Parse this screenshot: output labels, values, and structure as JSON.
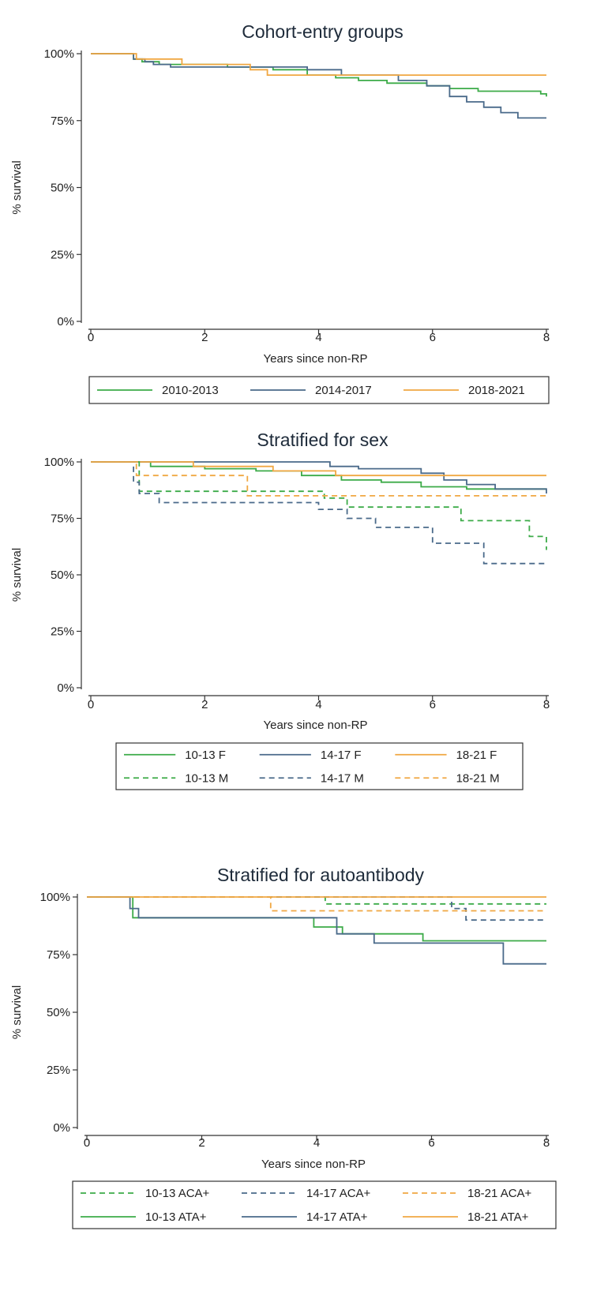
{
  "chart_data": [
    {
      "type": "line",
      "title": "Cohort-entry groups",
      "xlabel": "Years since non-RP",
      "ylabel": "% survival",
      "xlim": [
        0,
        8
      ],
      "ylim": [
        0,
        100
      ],
      "xticks": [
        0,
        2,
        4,
        6,
        8
      ],
      "yticks": [
        0,
        25,
        50,
        75,
        100
      ],
      "ytick_labels": [
        "0%",
        "25%",
        "50%",
        "75%",
        "100%"
      ],
      "grid": false,
      "legend": {
        "position": "bottom",
        "columns": 3
      },
      "series": [
        {
          "name": "2010-2013",
          "color": "#3cab48",
          "dashed": false,
          "x": [
            0,
            0.75,
            0.9,
            1.2,
            2.4,
            3.2,
            3.8,
            4.3,
            4.7,
            5.2,
            5.9,
            6.3,
            6.8,
            7.9,
            8.0
          ],
          "y": [
            100,
            98,
            97,
            96,
            95,
            94,
            92,
            91,
            90,
            89,
            88,
            87,
            86,
            85,
            84
          ]
        },
        {
          "name": "2014-2017",
          "color": "#4a6a8a",
          "dashed": false,
          "x": [
            0,
            0.75,
            0.95,
            1.1,
            1.4,
            3.8,
            4.4,
            5.4,
            5.9,
            6.3,
            6.6,
            6.9,
            7.2,
            7.5,
            8.0
          ],
          "y": [
            100,
            98,
            97,
            96,
            95,
            94,
            92,
            90,
            88,
            84,
            82,
            80,
            78,
            76,
            76
          ]
        },
        {
          "name": "2018-2021",
          "color": "#f0a742",
          "dashed": false,
          "x": [
            0,
            0.8,
            1.6,
            2.8,
            3.1,
            4.7,
            8.0
          ],
          "y": [
            100,
            98,
            96,
            94,
            92,
            92,
            92
          ]
        }
      ]
    },
    {
      "type": "line",
      "title": "Stratified for sex",
      "xlabel": "Years since non-RP",
      "ylabel": "% survival",
      "xlim": [
        0,
        8
      ],
      "ylim": [
        0,
        100
      ],
      "xticks": [
        0,
        2,
        4,
        6,
        8
      ],
      "yticks": [
        0,
        25,
        50,
        75,
        100
      ],
      "ytick_labels": [
        "0%",
        "25%",
        "50%",
        "75%",
        "100%"
      ],
      "grid": false,
      "legend": {
        "position": "bottom",
        "columns": 3
      },
      "series": [
        {
          "name": "10-13 F",
          "color": "#3cab48",
          "dashed": false,
          "x": [
            0,
            1.05,
            2.0,
            2.9,
            3.7,
            4.4,
            5.1,
            5.8,
            6.6,
            8.0
          ],
          "y": [
            100,
            98,
            97,
            96,
            94,
            92,
            91,
            89,
            88,
            88
          ]
        },
        {
          "name": "14-17 F",
          "color": "#4a6a8a",
          "dashed": false,
          "x": [
            0,
            4.2,
            4.7,
            5.8,
            6.2,
            6.6,
            7.1,
            8.0
          ],
          "y": [
            100,
            98,
            97,
            95,
            92,
            90,
            88,
            86
          ]
        },
        {
          "name": "18-21 F",
          "color": "#f0a742",
          "dashed": false,
          "x": [
            0,
            1.8,
            3.2,
            4.3,
            8.0
          ],
          "y": [
            100,
            98,
            96,
            94,
            94
          ]
        },
        {
          "name": "10-13 M",
          "color": "#3cab48",
          "dashed": true,
          "x": [
            0,
            0.85,
            1.0,
            4.1,
            4.5,
            6.5,
            7.7,
            8.0
          ],
          "y": [
            100,
            87,
            87,
            84,
            80,
            74,
            67,
            61
          ]
        },
        {
          "name": "14-17 M",
          "color": "#4a6a8a",
          "dashed": true,
          "x": [
            0,
            0.75,
            0.85,
            1.2,
            4.0,
            4.5,
            5.0,
            6.0,
            6.9,
            8.0
          ],
          "y": [
            100,
            91,
            86,
            82,
            79,
            75,
            71,
            64,
            55,
            55
          ]
        },
        {
          "name": "18-21 M",
          "color": "#f0a742",
          "dashed": true,
          "x": [
            0,
            0.8,
            2.75,
            8.0
          ],
          "y": [
            100,
            94,
            85,
            85
          ]
        }
      ]
    },
    {
      "type": "line",
      "title": "Stratified for autoantibody",
      "xlabel": "Years since non-RP",
      "ylabel": "% survival",
      "xlim": [
        0,
        8
      ],
      "ylim": [
        0,
        100
      ],
      "xticks": [
        0,
        2,
        4,
        6,
        8
      ],
      "yticks": [
        0,
        25,
        50,
        75,
        100
      ],
      "ytick_labels": [
        "0%",
        "25%",
        "50%",
        "75%",
        "100%"
      ],
      "grid": false,
      "legend": {
        "position": "bottom",
        "columns": 3
      },
      "series": [
        {
          "name": "10-13 ACA+",
          "color": "#3cab48",
          "dashed": true,
          "x": [
            0,
            4.15,
            8.0
          ],
          "y": [
            100,
            97,
            97
          ]
        },
        {
          "name": "14-17 ACA+",
          "color": "#4a6a8a",
          "dashed": true,
          "x": [
            0,
            6.35,
            6.6,
            8.0
          ],
          "y": [
            100,
            95,
            90,
            90
          ]
        },
        {
          "name": "18-21 ACA+",
          "color": "#f0a742",
          "dashed": true,
          "x": [
            0,
            3.2,
            8.0
          ],
          "y": [
            100,
            94,
            94
          ]
        },
        {
          "name": "10-13 ATA+",
          "color": "#3cab48",
          "dashed": false,
          "x": [
            0,
            0.8,
            3.95,
            4.45,
            5.1,
            5.85,
            8.0
          ],
          "y": [
            100,
            91,
            87,
            84,
            84,
            81,
            81
          ]
        },
        {
          "name": "14-17 ATA+",
          "color": "#4a6a8a",
          "dashed": false,
          "x": [
            0,
            0.75,
            0.9,
            4.35,
            5.0,
            7.25,
            8.0
          ],
          "y": [
            100,
            95,
            91,
            84,
            80,
            71,
            71
          ]
        },
        {
          "name": "18-21 ATA+",
          "color": "#f0a742",
          "dashed": false,
          "x": [
            0,
            8.0
          ],
          "y": [
            100,
            100
          ]
        }
      ]
    }
  ]
}
